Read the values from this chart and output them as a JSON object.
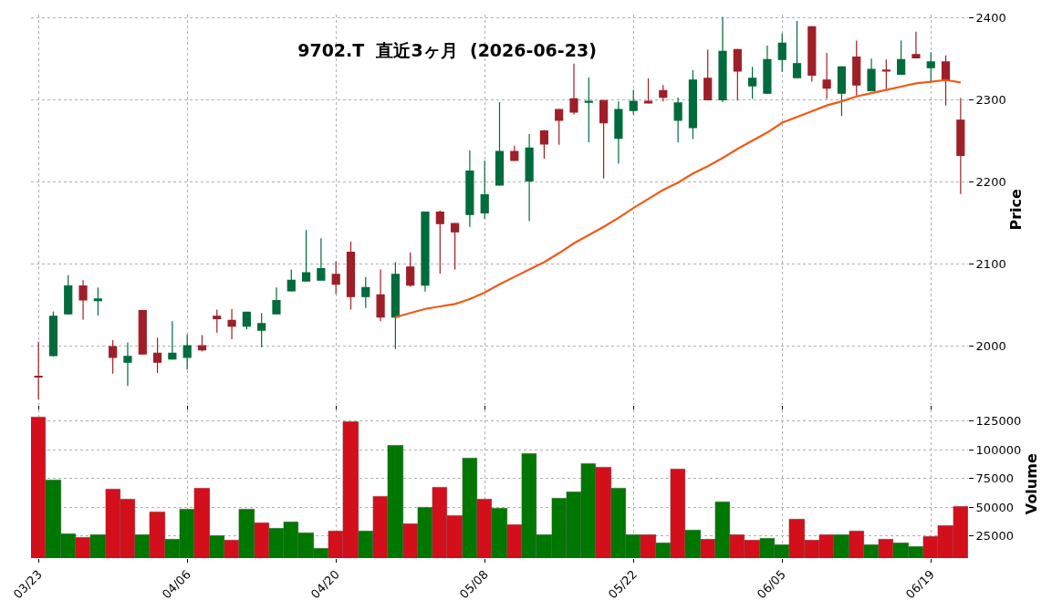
{
  "chart_data": [
    {
      "type": "candlestick",
      "title": "9702.T  直近3ヶ月  (2026-06-23)",
      "ylabel": "Price",
      "ohlc": [
        [
          1963,
          2005,
          1935,
          1962
        ],
        [
          1988,
          2042,
          1987,
          2036
        ],
        [
          2039,
          2086,
          2038,
          2073
        ],
        [
          2073,
          2080,
          2032,
          2056
        ],
        [
          2055,
          2071,
          2037,
          2057
        ],
        [
          1999,
          2007,
          1966,
          1986
        ],
        [
          1980,
          2004,
          1951,
          1987
        ],
        [
          2043,
          2043,
          1989,
          1990
        ],
        [
          1991,
          2010,
          1967,
          1980
        ],
        [
          1984,
          2030,
          1983,
          1991
        ],
        [
          1986,
          2014,
          1971,
          2000
        ],
        [
          2000,
          2013,
          1993,
          1995
        ],
        [
          2036,
          2044,
          2016,
          2033
        ],
        [
          2031,
          2045,
          2008,
          2024
        ],
        [
          2024,
          2041,
          2020,
          2041
        ],
        [
          2019,
          2040,
          1998,
          2027
        ],
        [
          2039,
          2071,
          2039,
          2055
        ],
        [
          2067,
          2093,
          2066,
          2080
        ],
        [
          2079,
          2141,
          2079,
          2089
        ],
        [
          2080,
          2131,
          2080,
          2094
        ],
        [
          2087,
          2103,
          2063,
          2075
        ],
        [
          2114,
          2127,
          2044,
          2060
        ],
        [
          2060,
          2084,
          2046,
          2071
        ],
        [
          2062,
          2093,
          2030,
          2035
        ],
        [
          2035,
          2102,
          1996,
          2087
        ],
        [
          2096,
          2114,
          2072,
          2074
        ],
        [
          2074,
          2163,
          2066,
          2163
        ],
        [
          2163,
          2165,
          2088,
          2149
        ],
        [
          2149,
          2150,
          2093,
          2139
        ],
        [
          2160,
          2238,
          2145,
          2213
        ],
        [
          2162,
          2226,
          2155,
          2184
        ],
        [
          2196,
          2297,
          2195,
          2237
        ],
        [
          2237,
          2244,
          2225,
          2226
        ],
        [
          2201,
          2258,
          2152,
          2241
        ],
        [
          2262,
          2263,
          2228,
          2246
        ],
        [
          2288,
          2289,
          2245,
          2275
        ],
        [
          2301,
          2344,
          2282,
          2285
        ],
        [
          2297,
          2327,
          2248,
          2298
        ],
        [
          2299,
          2300,
          2204,
          2272
        ],
        [
          2253,
          2298,
          2222,
          2288
        ],
        [
          2287,
          2312,
          2282,
          2298
        ],
        [
          2298,
          2326,
          2295,
          2296
        ],
        [
          2311,
          2318,
          2298,
          2303
        ],
        [
          2275,
          2303,
          2248,
          2296
        ],
        [
          2266,
          2336,
          2252,
          2324
        ],
        [
          2326,
          2361,
          2299,
          2300
        ],
        [
          2300,
          2401,
          2297,
          2359
        ],
        [
          2361,
          2362,
          2299,
          2335
        ],
        [
          2317,
          2340,
          2301,
          2326
        ],
        [
          2308,
          2366,
          2307,
          2349
        ],
        [
          2349,
          2381,
          2334,
          2369
        ],
        [
          2327,
          2396,
          2326,
          2344
        ],
        [
          2389,
          2390,
          2322,
          2330
        ],
        [
          2324,
          2357,
          2301,
          2314
        ],
        [
          2308,
          2341,
          2280,
          2340
        ],
        [
          2352,
          2372,
          2305,
          2318
        ],
        [
          2311,
          2350,
          2310,
          2337
        ],
        [
          2336,
          2349,
          2313,
          2335
        ],
        [
          2331,
          2372,
          2330,
          2349
        ],
        [
          2355,
          2383,
          2350,
          2351
        ],
        [
          2339,
          2358,
          2320,
          2346
        ],
        [
          2346,
          2354,
          2293,
          2324
        ],
        [
          2275,
          2302,
          2185,
          2232
        ]
      ],
      "colors": [
        "#9e1f28",
        "#006b3c",
        "#006b3c",
        "#9e1f28",
        "#006b3c",
        "#9e1f28",
        "#006b3c",
        "#9e1f28",
        "#9e1f28",
        "#006b3c",
        "#006b3c",
        "#9e1f28",
        "#9e1f28",
        "#9e1f28",
        "#006b3c",
        "#006b3c",
        "#006b3c",
        "#006b3c",
        "#006b3c",
        "#006b3c",
        "#9e1f28",
        "#9e1f28",
        "#006b3c",
        "#9e1f28",
        "#006b3c",
        "#9e1f28",
        "#006b3c",
        "#9e1f28",
        "#9e1f28",
        "#006b3c",
        "#006b3c",
        "#006b3c",
        "#9e1f28",
        "#006b3c",
        "#9e1f28",
        "#9e1f28",
        "#9e1f28",
        "#006b3c",
        "#9e1f28",
        "#006b3c",
        "#006b3c",
        "#9e1f28",
        "#9e1f28",
        "#006b3c",
        "#006b3c",
        "#9e1f28",
        "#006b3c",
        "#9e1f28",
        "#006b3c",
        "#006b3c",
        "#006b3c",
        "#006b3c",
        "#9e1f28",
        "#9e1f28",
        "#006b3c",
        "#9e1f28",
        "#006b3c",
        "#9e1f28",
        "#006b3c",
        "#9e1f28",
        "#006b3c",
        "#9e1f28",
        "#9e1f28"
      ],
      "series": [
        {
          "type": "line",
          "color": "#f05a16",
          "values": [
            null,
            null,
            null,
            null,
            null,
            null,
            null,
            null,
            null,
            null,
            null,
            null,
            null,
            null,
            null,
            null,
            null,
            null,
            null,
            null,
            null,
            null,
            null,
            null,
            2035,
            2040,
            2045,
            2048,
            2051,
            2057,
            2065,
            2075,
            2084,
            2093,
            2102,
            2113,
            2125,
            2135,
            2145,
            2156,
            2168,
            2179,
            2190,
            2199,
            2210,
            2219,
            2229,
            2240,
            2250,
            2260,
            2272,
            2279,
            2286,
            2293,
            2298,
            2304,
            2308,
            2312,
            2316,
            2320,
            2322,
            2324,
            2321
          ]
        }
      ],
      "ylim": [
        1928,
        2404
      ],
      "yticks": [
        2000,
        2100,
        2200,
        2300,
        2400
      ],
      "grid": true,
      "tick_labels": "y"
    },
    {
      "type": "bar",
      "ylabel": "Volume",
      "categories": [
        "03/23",
        null,
        null,
        null,
        null,
        null,
        null,
        null,
        null,
        null,
        "04/06",
        null,
        null,
        null,
        null,
        null,
        null,
        null,
        null,
        null,
        "04/20",
        null,
        null,
        null,
        null,
        null,
        null,
        null,
        null,
        null,
        "05/08",
        null,
        null,
        null,
        null,
        null,
        null,
        null,
        null,
        null,
        "05/22",
        null,
        null,
        null,
        null,
        null,
        null,
        null,
        null,
        null,
        "06/05",
        null,
        null,
        null,
        null,
        null,
        null,
        null,
        null,
        null,
        "06/19",
        null,
        null
      ],
      "values": [
        128500,
        73500,
        26800,
        23500,
        25900,
        65600,
        56800,
        25900,
        45600,
        22100,
        48200,
        66500,
        25000,
        21200,
        48200,
        36200,
        31500,
        37100,
        27400,
        14100,
        29100,
        124400,
        29100,
        59100,
        103800,
        35300,
        49700,
        67100,
        42600,
        93200,
        56800,
        48800,
        34700,
        96500,
        25600,
        57400,
        63500,
        87900,
        84700,
        66800,
        25600,
        26200,
        18500,
        83200,
        30300,
        21800,
        54700,
        25600,
        20900,
        22400,
        16800,
        39700,
        20900,
        25600,
        26200,
        29400,
        16800,
        21800,
        19100,
        15300,
        24700,
        34100,
        50600
      ],
      "colors": [
        "#d20f1a",
        "#007700",
        "#007700",
        "#d20f1a",
        "#007700",
        "#d20f1a",
        "#d20f1a",
        "#007700",
        "#d20f1a",
        "#007700",
        "#007700",
        "#d20f1a",
        "#007700",
        "#d20f1a",
        "#007700",
        "#d20f1a",
        "#007700",
        "#007700",
        "#007700",
        "#007700",
        "#d20f1a",
        "#d20f1a",
        "#007700",
        "#d20f1a",
        "#007700",
        "#d20f1a",
        "#007700",
        "#d20f1a",
        "#d20f1a",
        "#007700",
        "#d20f1a",
        "#007700",
        "#d20f1a",
        "#007700",
        "#007700",
        "#007700",
        "#007700",
        "#007700",
        "#d20f1a",
        "#007700",
        "#007700",
        "#d20f1a",
        "#007700",
        "#d20f1a",
        "#007700",
        "#d20f1a",
        "#007700",
        "#d20f1a",
        "#d20f1a",
        "#007700",
        "#007700",
        "#d20f1a",
        "#d20f1a",
        "#d20f1a",
        "#007700",
        "#d20f1a",
        "#007700",
        "#d20f1a",
        "#007700",
        "#007700",
        "#d20f1a",
        "#d20f1a",
        "#d20f1a"
      ],
      "ylim": [
        5500,
        135000
      ],
      "yticks": [
        25000,
        50000,
        75000,
        100000,
        125000
      ],
      "grid": true
    }
  ]
}
